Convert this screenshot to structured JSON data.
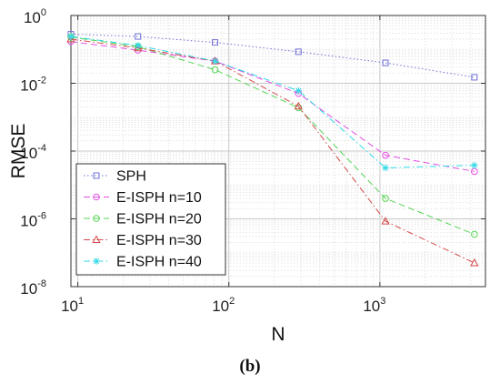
{
  "chart_data": {
    "type": "line",
    "x_scale": "log",
    "y_scale": "log",
    "xlabel": "N",
    "ylabel": "RMSE",
    "xlim": [
      9,
      5000
    ],
    "ylim": [
      1e-08,
      1
    ],
    "x_ticks": [
      {
        "base": "10",
        "exp": "1",
        "value": 10
      },
      {
        "base": "10",
        "exp": "2",
        "value": 100
      },
      {
        "base": "10",
        "exp": "3",
        "value": 1000
      }
    ],
    "y_ticks": [
      {
        "base": "10",
        "exp": "0",
        "value": 1
      },
      {
        "base": "10",
        "exp": "-2",
        "value": 0.01
      },
      {
        "base": "10",
        "exp": "-4",
        "value": 0.0001
      },
      {
        "base": "10",
        "exp": "-6",
        "value": 1e-06
      },
      {
        "base": "10",
        "exp": "-8",
        "value": 1e-08
      }
    ],
    "grid": true,
    "legend_position": "bottom-left",
    "caption": "(b)",
    "x": [
      9,
      25,
      81,
      289,
      1089,
      4225
    ],
    "series": [
      {
        "name": "SPH",
        "color": "#6f6fd6",
        "marker": "square",
        "dash": "dot",
        "values": [
          0.28,
          0.24,
          0.16,
          0.085,
          0.04,
          0.015
        ]
      },
      {
        "name": "E-ISPH n=10",
        "color": "#e34ee3",
        "marker": "circle",
        "dash": "dash",
        "values": [
          0.17,
          0.095,
          0.045,
          0.005,
          7.5e-05,
          2.5e-05
        ]
      },
      {
        "name": "E-ISPH n=20",
        "color": "#56d456",
        "marker": "circle",
        "dash": "dash",
        "values": [
          0.23,
          0.12,
          0.025,
          0.0019,
          4e-06,
          3.5e-07
        ]
      },
      {
        "name": "E-ISPH n=30",
        "color": "#d44a4a",
        "marker": "triangle",
        "dash": "dashdot",
        "values": [
          0.2,
          0.11,
          0.045,
          0.0021,
          8.5e-07,
          5e-08
        ]
      },
      {
        "name": "E-ISPH n=40",
        "color": "#2fd9e6",
        "marker": "star",
        "dash": "dashdot",
        "values": [
          0.24,
          0.13,
          0.045,
          0.006,
          3.2e-05,
          3.8e-05
        ]
      }
    ]
  }
}
